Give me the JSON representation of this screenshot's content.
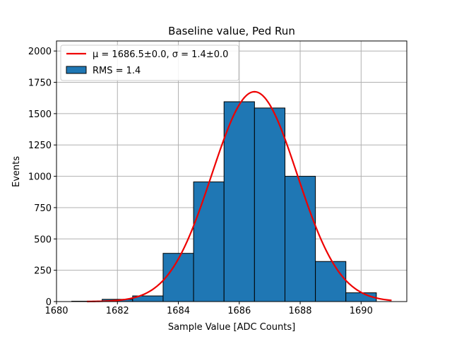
{
  "chart_data": {
    "type": "bar",
    "title": "Baseline value, Ped Run",
    "xlabel": "Sample Value [ADC Counts]",
    "ylabel": "Events",
    "xlim": [
      1680,
      1691.5
    ],
    "ylim": [
      0,
      2080
    ],
    "xticks": [
      1680,
      1682,
      1684,
      1686,
      1688,
      1690
    ],
    "yticks": [
      0,
      250,
      500,
      750,
      1000,
      1250,
      1500,
      1750,
      2000
    ],
    "xtick_labels": [
      "1680",
      "1682",
      "1684",
      "1686",
      "1688",
      "1690"
    ],
    "ytick_labels": [
      "0",
      "250",
      "500",
      "750",
      "1000",
      "1250",
      "1500",
      "1750",
      "2000"
    ],
    "grid": true,
    "legend_position": "top-left",
    "histogram": {
      "name": "RMS = 1.4",
      "color": "#1f77b4",
      "edge_color": "#000000",
      "bins": [
        {
          "x0": 1680.5,
          "x1": 1681.5,
          "count": 3
        },
        {
          "x0": 1681.5,
          "x1": 1682.5,
          "count": 18
        },
        {
          "x0": 1682.5,
          "x1": 1683.5,
          "count": 45
        },
        {
          "x0": 1683.5,
          "x1": 1684.5,
          "count": 385
        },
        {
          "x0": 1684.5,
          "x1": 1685.5,
          "count": 955
        },
        {
          "x0": 1685.5,
          "x1": 1686.5,
          "count": 1595
        },
        {
          "x0": 1686.5,
          "x1": 1687.5,
          "count": 1545
        },
        {
          "x0": 1687.5,
          "x1": 1688.5,
          "count": 1000
        },
        {
          "x0": 1688.5,
          "x1": 1689.5,
          "count": 320
        },
        {
          "x0": 1689.5,
          "x1": 1690.5,
          "count": 70
        }
      ]
    },
    "fit": {
      "name_prefix": "μ = 1686.5±0.0, ",
      "name_sigma": "σ = 1.4±0.0",
      "color": "#ee0000",
      "amplitude": 1675,
      "mean": 1686.5,
      "sigma": 1.4,
      "x_range": [
        1681,
        1691
      ]
    }
  }
}
